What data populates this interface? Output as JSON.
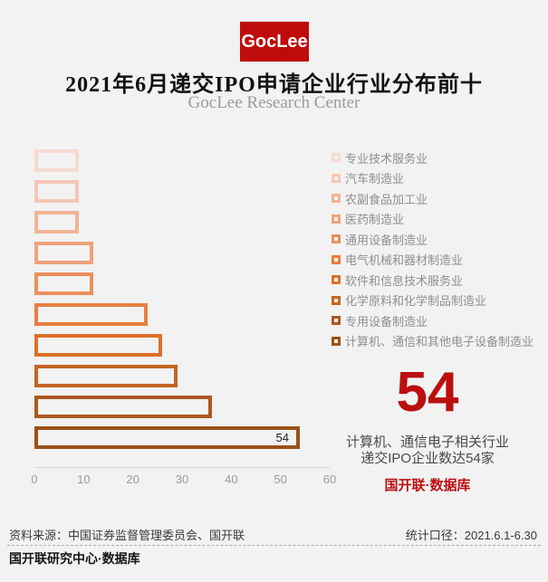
{
  "page": {
    "background": "#f2f2f2"
  },
  "header": {
    "logo_text": "GocLee",
    "logo_color": "#c00b0b",
    "title": "2021年6月递交IPO申请企业行业分布前十",
    "subtitle": "GocLee Research Center"
  },
  "chart_data": {
    "type": "bar",
    "orientation": "horizontal",
    "title": "2021年6月递交IPO申请企业行业分布前十",
    "categories": [
      "专业技术服务业",
      "汽车制造业",
      "农副食品加工业",
      "医药制造业",
      "通用设备制造业",
      "电气机械和器材制造业",
      "软件和信息技术服务业",
      "化学原料和化学制品制造业",
      "专用设备制造业",
      "计算机、通信和其他电子设备制造业"
    ],
    "values": [
      9,
      9,
      9,
      12,
      12,
      23,
      26,
      29,
      36,
      54
    ],
    "colors": [
      "#f6dacf",
      "#f4c7b3",
      "#f1b395",
      "#efa17c",
      "#ec8e5c",
      "#e87f40",
      "#dc7127",
      "#c46524",
      "#ac5820",
      "#9c5118"
    ],
    "xlim": [
      0,
      60
    ],
    "xticks": [
      "0",
      "10",
      "20",
      "30",
      "40",
      "50",
      "60"
    ],
    "bar_value_label": "54",
    "grid": false,
    "legend_position": "right",
    "bar_style": "hollow-outline"
  },
  "highlight": {
    "number": "54",
    "line1": "计算机、通信电子相关行业",
    "line2": "递交IPO企业数达54家",
    "brand": "国开联·数据库",
    "accent_color": "#bb0f0f"
  },
  "footer": {
    "source": "资料来源：中国证券监督管理委员会、国开联",
    "scope": "统计口径：2021.6.1-6.30",
    "brand": "国开联研究中心·数据库"
  }
}
